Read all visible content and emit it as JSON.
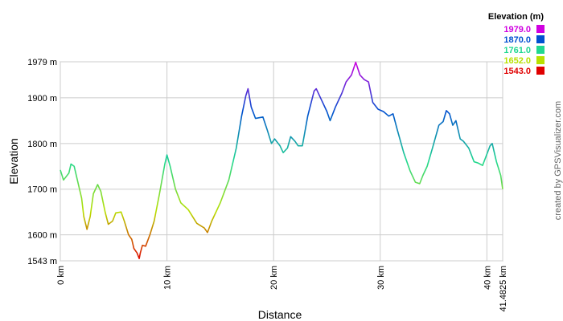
{
  "chart_data": {
    "type": "line",
    "xlabel": "Distance",
    "ylabel": "Elevation",
    "legend_title": "Elevation (m)",
    "legend": [
      {
        "value": 1979,
        "label": "1979.0",
        "color": "#d000e0"
      },
      {
        "value": 1870,
        "label": "1870.0",
        "color": "#0050d0"
      },
      {
        "value": 1761,
        "label": "1761.0",
        "color": "#20d890"
      },
      {
        "value": 1652,
        "label": "1652.0",
        "color": "#b8e000"
      },
      {
        "value": 1543,
        "label": "1543.0",
        "color": "#e00000"
      }
    ],
    "watermark": "created by GPSVisualizer.com",
    "xlim": [
      0,
      41.4825
    ],
    "ylim": [
      1543,
      1979
    ],
    "xticks": [
      {
        "value": 0,
        "label": "0 km"
      },
      {
        "value": 10,
        "label": "10 km"
      },
      {
        "value": 20,
        "label": "20 km"
      },
      {
        "value": 30,
        "label": "30 km"
      },
      {
        "value": 40,
        "label": "40 km"
      },
      {
        "value": 41.4825,
        "label": "41.4825 km"
      }
    ],
    "yticks": [
      {
        "value": 1543,
        "label": "1543 m"
      },
      {
        "value": 1600,
        "label": "1600 m"
      },
      {
        "value": 1700,
        "label": "1700 m"
      },
      {
        "value": 1800,
        "label": "1800 m"
      },
      {
        "value": 1900,
        "label": "1900 m"
      },
      {
        "value": 1979,
        "label": "1979 m"
      }
    ],
    "grid": true,
    "x": [
      0,
      0.3,
      0.8,
      1.0,
      1.3,
      1.7,
      2.0,
      2.2,
      2.5,
      2.8,
      3.1,
      3.5,
      3.8,
      4.2,
      4.5,
      4.9,
      5.2,
      5.7,
      6.0,
      6.4,
      6.7,
      6.9,
      7.2,
      7.4,
      7.5,
      7.7,
      8.0,
      8.4,
      8.8,
      9.3,
      9.8,
      10.0,
      10.3,
      10.8,
      11.3,
      12.0,
      12.8,
      13.5,
      13.8,
      14.2,
      15.0,
      15.8,
      16.5,
      17.0,
      17.4,
      17.6,
      17.9,
      18.3,
      19.0,
      19.4,
      19.8,
      20.1,
      20.6,
      20.9,
      21.3,
      21.6,
      22.0,
      22.3,
      22.7,
      23.2,
      23.8,
      24.0,
      24.5,
      25.0,
      25.3,
      25.8,
      26.4,
      26.8,
      27.3,
      27.7,
      28.1,
      28.5,
      28.9,
      29.3,
      29.8,
      30.3,
      30.8,
      31.2,
      31.6,
      32.2,
      32.8,
      33.3,
      33.7,
      34.0,
      34.4,
      34.9,
      35.5,
      35.9,
      36.2,
      36.5,
      36.8,
      37.1,
      37.5,
      37.8,
      38.3,
      38.8,
      39.2,
      39.6,
      40.3,
      40.5,
      40.9,
      41.3,
      41.4825
    ],
    "values": [
      1742,
      1720,
      1735,
      1755,
      1750,
      1710,
      1680,
      1640,
      1612,
      1640,
      1690,
      1710,
      1695,
      1650,
      1623,
      1630,
      1648,
      1650,
      1630,
      1600,
      1590,
      1570,
      1560,
      1548,
      1560,
      1577,
      1575,
      1600,
      1630,
      1690,
      1755,
      1775,
      1750,
      1700,
      1670,
      1655,
      1625,
      1615,
      1605,
      1630,
      1670,
      1720,
      1790,
      1860,
      1905,
      1920,
      1880,
      1855,
      1858,
      1830,
      1800,
      1810,
      1795,
      1780,
      1790,
      1815,
      1805,
      1795,
      1795,
      1860,
      1915,
      1920,
      1895,
      1870,
      1850,
      1880,
      1910,
      1935,
      1950,
      1978,
      1950,
      1940,
      1935,
      1890,
      1875,
      1870,
      1860,
      1865,
      1830,
      1780,
      1740,
      1715,
      1712,
      1730,
      1750,
      1790,
      1840,
      1848,
      1872,
      1865,
      1840,
      1850,
      1810,
      1805,
      1790,
      1760,
      1757,
      1752,
      1795,
      1800,
      1760,
      1730,
      1700
    ]
  }
}
